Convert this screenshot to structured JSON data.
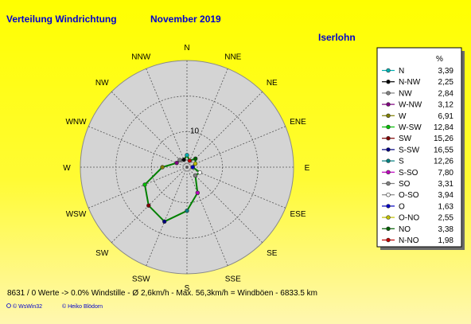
{
  "header": {
    "title": "Verteilung Windrichtung",
    "period": "November 2019",
    "station": "Iserlohn"
  },
  "footer": {
    "summary": "8631 / 0 Werte  -> 0.0% Windstille   -   Ø 2,6km/h  -  Max. 56,3km/h = Windböen   -   6833.5 km",
    "credit1": "© WsWin32",
    "credit2": "© Heiko Blödorn"
  },
  "chart_data": {
    "type": "radar",
    "unit": "%",
    "ring_label": "10",
    "rmax": 30,
    "rings": [
      10,
      20,
      30
    ],
    "grid": true,
    "legend_position": "right",
    "compass_labels": [
      "N",
      "NNE",
      "NE",
      "ENE",
      "E",
      "ESE",
      "SE",
      "SSE",
      "S",
      "SSW",
      "SW",
      "WSW",
      "W",
      "WNW",
      "NW",
      "NNW"
    ],
    "directions": [
      {
        "label": "N",
        "angle": 0,
        "value": 3.39,
        "color": "#00b0b0"
      },
      {
        "label": "N-NW",
        "angle": 337.5,
        "value": 2.25,
        "color": "#000000"
      },
      {
        "label": "NW",
        "angle": 315,
        "value": 2.84,
        "color": "#808080"
      },
      {
        "label": "W-NW",
        "angle": 292.5,
        "value": 3.12,
        "color": "#800080"
      },
      {
        "label": "W",
        "angle": 270,
        "value": 6.91,
        "color": "#808000"
      },
      {
        "label": "W-SW",
        "angle": 247.5,
        "value": 12.84,
        "color": "#00c000"
      },
      {
        "label": "SW",
        "angle": 225,
        "value": 15.26,
        "color": "#800000"
      },
      {
        "label": "S-SW",
        "angle": 202.5,
        "value": 16.55,
        "color": "#000080"
      },
      {
        "label": "S",
        "angle": 180,
        "value": 12.26,
        "color": "#008080"
      },
      {
        "label": "S-SO",
        "angle": 157.5,
        "value": 7.8,
        "color": "#c000c0"
      },
      {
        "label": "SO",
        "angle": 135,
        "value": 3.31,
        "color": "#808080"
      },
      {
        "label": "O-SO",
        "angle": 112.5,
        "value": 3.94,
        "color": "#ffffff"
      },
      {
        "label": "O",
        "angle": 90,
        "value": 1.63,
        "color": "#0000c0"
      },
      {
        "label": "O-NO",
        "angle": 67.5,
        "value": 2.55,
        "color": "#c0c000"
      },
      {
        "label": "NO",
        "angle": 45,
        "value": 3.38,
        "color": "#006000"
      },
      {
        "label": "N-NO",
        "angle": 22.5,
        "value": 1.98,
        "color": "#c00000"
      }
    ],
    "line_color": "#008000"
  }
}
